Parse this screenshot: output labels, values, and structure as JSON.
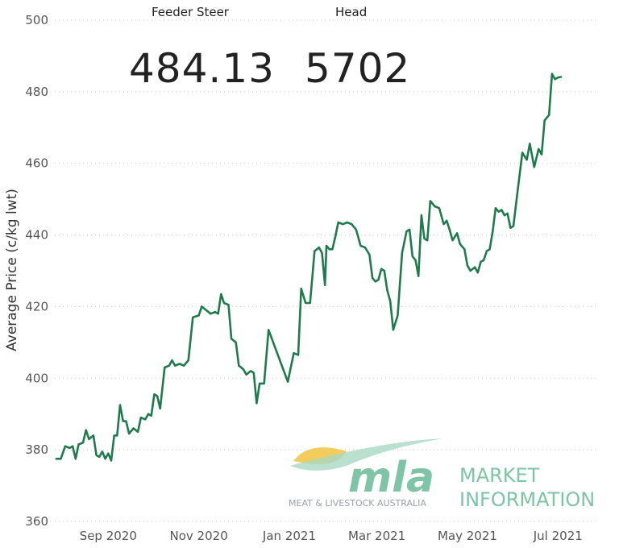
{
  "kpis": {
    "feeder_label": "Feeder Steer",
    "feeder_value": "484.13",
    "head_label": "Head",
    "head_value": "5702"
  },
  "logo": {
    "mark": "mla",
    "tagline": "MEAT & LIVESTOCK AUSTRALIA",
    "line1": "MARKET",
    "line2": "INFORMATION",
    "color_primary": "#7ec4a6",
    "color_sun": "#f2cd5c"
  },
  "chart_data": {
    "type": "line",
    "title": "",
    "xlabel": "",
    "ylabel": "Average Price (c/kg lwt)",
    "ylim": [
      360,
      500
    ],
    "yticks": [
      360,
      380,
      400,
      420,
      440,
      460,
      480,
      500
    ],
    "xlim": [
      "2020-07-27",
      "2021-07-28"
    ],
    "xticks": [
      {
        "date": "2020-09-01",
        "label": "Sep 2020"
      },
      {
        "date": "2020-11-01",
        "label": "Nov 2020"
      },
      {
        "date": "2021-01-01",
        "label": "Jan 2021"
      },
      {
        "date": "2021-03-01",
        "label": "Mar 2021"
      },
      {
        "date": "2021-05-01",
        "label": "May 2021"
      },
      {
        "date": "2021-07-01",
        "label": "Jul 2021"
      }
    ],
    "grid": true,
    "line_color": "#1f7a4c",
    "series": [
      {
        "points": [
          [
            "2020-07-28",
            377.5
          ],
          [
            "2020-07-31",
            377.5
          ],
          [
            "2020-08-03",
            381
          ],
          [
            "2020-08-06",
            380.5
          ],
          [
            "2020-08-08",
            381
          ],
          [
            "2020-08-10",
            377.5
          ],
          [
            "2020-08-12",
            381.5
          ],
          [
            "2020-08-15",
            382
          ],
          [
            "2020-08-17",
            385.5
          ],
          [
            "2020-08-19",
            383
          ],
          [
            "2020-08-22",
            384
          ],
          [
            "2020-08-24",
            378.5
          ],
          [
            "2020-08-26",
            378
          ],
          [
            "2020-08-28",
            379.5
          ],
          [
            "2020-08-30",
            377.5
          ],
          [
            "2020-09-01",
            379
          ],
          [
            "2020-09-03",
            377
          ],
          [
            "2020-09-05",
            384
          ],
          [
            "2020-09-07",
            384
          ],
          [
            "2020-09-09",
            392.5
          ],
          [
            "2020-09-11",
            388
          ],
          [
            "2020-09-13",
            388
          ],
          [
            "2020-09-15",
            384.5
          ],
          [
            "2020-09-18",
            386
          ],
          [
            "2020-09-21",
            385
          ],
          [
            "2020-09-23",
            389
          ],
          [
            "2020-09-26",
            388.5
          ],
          [
            "2020-09-28",
            390
          ],
          [
            "2020-09-30",
            389.5
          ],
          [
            "2020-10-02",
            395.5
          ],
          [
            "2020-10-04",
            395
          ],
          [
            "2020-10-06",
            391.5
          ],
          [
            "2020-10-09",
            403
          ],
          [
            "2020-10-12",
            403.5
          ],
          [
            "2020-10-14",
            405
          ],
          [
            "2020-10-16",
            403.5
          ],
          [
            "2020-10-19",
            404
          ],
          [
            "2020-10-22",
            403.5
          ],
          [
            "2020-10-25",
            405
          ],
          [
            "2020-10-28",
            417
          ],
          [
            "2020-11-01",
            417.5
          ],
          [
            "2020-11-03",
            420
          ],
          [
            "2020-11-06",
            419
          ],
          [
            "2020-11-09",
            418
          ],
          [
            "2020-11-12",
            418.5
          ],
          [
            "2020-11-14",
            418
          ],
          [
            "2020-11-16",
            423.5
          ],
          [
            "2020-11-18",
            421
          ],
          [
            "2020-11-21",
            420.5
          ],
          [
            "2020-11-23",
            411
          ],
          [
            "2020-11-26",
            410
          ],
          [
            "2020-11-28",
            403.5
          ],
          [
            "2020-12-01",
            402.5
          ],
          [
            "2020-12-03",
            401
          ],
          [
            "2020-12-06",
            402
          ],
          [
            "2020-12-08",
            401.5
          ],
          [
            "2020-12-10",
            393
          ],
          [
            "2020-12-12",
            398.5
          ],
          [
            "2020-12-15",
            398.5
          ],
          [
            "2020-12-18",
            413.5
          ],
          [
            "2020-12-31",
            399
          ],
          [
            "2021-01-04",
            407
          ],
          [
            "2021-01-07",
            406.5
          ],
          [
            "2021-01-09",
            425
          ],
          [
            "2021-01-12",
            421
          ],
          [
            "2021-01-15",
            421
          ],
          [
            "2021-01-18",
            435.5
          ],
          [
            "2021-01-21",
            436.5
          ],
          [
            "2021-01-23",
            435
          ],
          [
            "2021-01-25",
            426
          ],
          [
            "2021-01-26",
            437
          ],
          [
            "2021-01-28",
            436
          ],
          [
            "2021-01-30",
            436
          ],
          [
            "2021-02-01",
            439.5
          ],
          [
            "2021-02-03",
            443.5
          ],
          [
            "2021-02-06",
            443
          ],
          [
            "2021-02-09",
            443.5
          ],
          [
            "2021-02-12",
            443
          ],
          [
            "2021-02-15",
            441.5
          ],
          [
            "2021-02-18",
            437
          ],
          [
            "2021-02-21",
            436.5
          ],
          [
            "2021-02-24",
            434.5
          ],
          [
            "2021-02-26",
            428
          ],
          [
            "2021-02-28",
            427
          ],
          [
            "2021-03-02",
            427.5
          ],
          [
            "2021-03-04",
            430.5
          ],
          [
            "2021-03-06",
            430
          ],
          [
            "2021-03-08",
            424.5
          ],
          [
            "2021-03-10",
            421.5
          ],
          [
            "2021-03-12",
            413.5
          ],
          [
            "2021-03-15",
            417.5
          ],
          [
            "2021-03-18",
            435
          ],
          [
            "2021-03-21",
            441
          ],
          [
            "2021-03-23",
            441.5
          ],
          [
            "2021-03-25",
            434
          ],
          [
            "2021-03-27",
            433
          ],
          [
            "2021-03-29",
            428.5
          ],
          [
            "2021-03-31",
            445.5
          ],
          [
            "2021-04-02",
            439
          ],
          [
            "2021-04-04",
            438.5
          ],
          [
            "2021-04-06",
            449.5
          ],
          [
            "2021-04-09",
            448
          ],
          [
            "2021-04-12",
            447.5
          ],
          [
            "2021-04-15",
            443
          ],
          [
            "2021-04-17",
            444
          ],
          [
            "2021-04-19",
            441.5
          ],
          [
            "2021-04-21",
            438.5
          ],
          [
            "2021-04-24",
            440.5
          ],
          [
            "2021-04-26",
            437.5
          ],
          [
            "2021-04-29",
            436
          ],
          [
            "2021-05-01",
            431.5
          ],
          [
            "2021-05-03",
            430
          ],
          [
            "2021-05-06",
            431
          ],
          [
            "2021-05-08",
            429.5
          ],
          [
            "2021-05-10",
            432.5
          ],
          [
            "2021-05-12",
            433
          ],
          [
            "2021-05-14",
            435.5
          ],
          [
            "2021-05-16",
            436
          ],
          [
            "2021-05-18",
            441
          ],
          [
            "2021-05-20",
            447.5
          ],
          [
            "2021-05-22",
            446.5
          ],
          [
            "2021-05-24",
            447
          ],
          [
            "2021-05-26",
            445.5
          ],
          [
            "2021-05-28",
            446
          ],
          [
            "2021-05-30",
            442
          ],
          [
            "2021-06-01",
            442.5
          ],
          [
            "2021-06-04",
            453
          ],
          [
            "2021-06-07",
            463
          ],
          [
            "2021-06-10",
            461
          ],
          [
            "2021-06-12",
            465.5
          ],
          [
            "2021-06-15",
            459
          ],
          [
            "2021-06-18",
            464
          ],
          [
            "2021-06-20",
            462.5
          ],
          [
            "2021-06-22",
            472
          ],
          [
            "2021-06-25",
            473.5
          ],
          [
            "2021-06-27",
            485
          ],
          [
            "2021-06-29",
            483.5
          ],
          [
            "2021-07-01",
            484
          ],
          [
            "2021-07-03",
            484.13
          ]
        ]
      }
    ]
  }
}
